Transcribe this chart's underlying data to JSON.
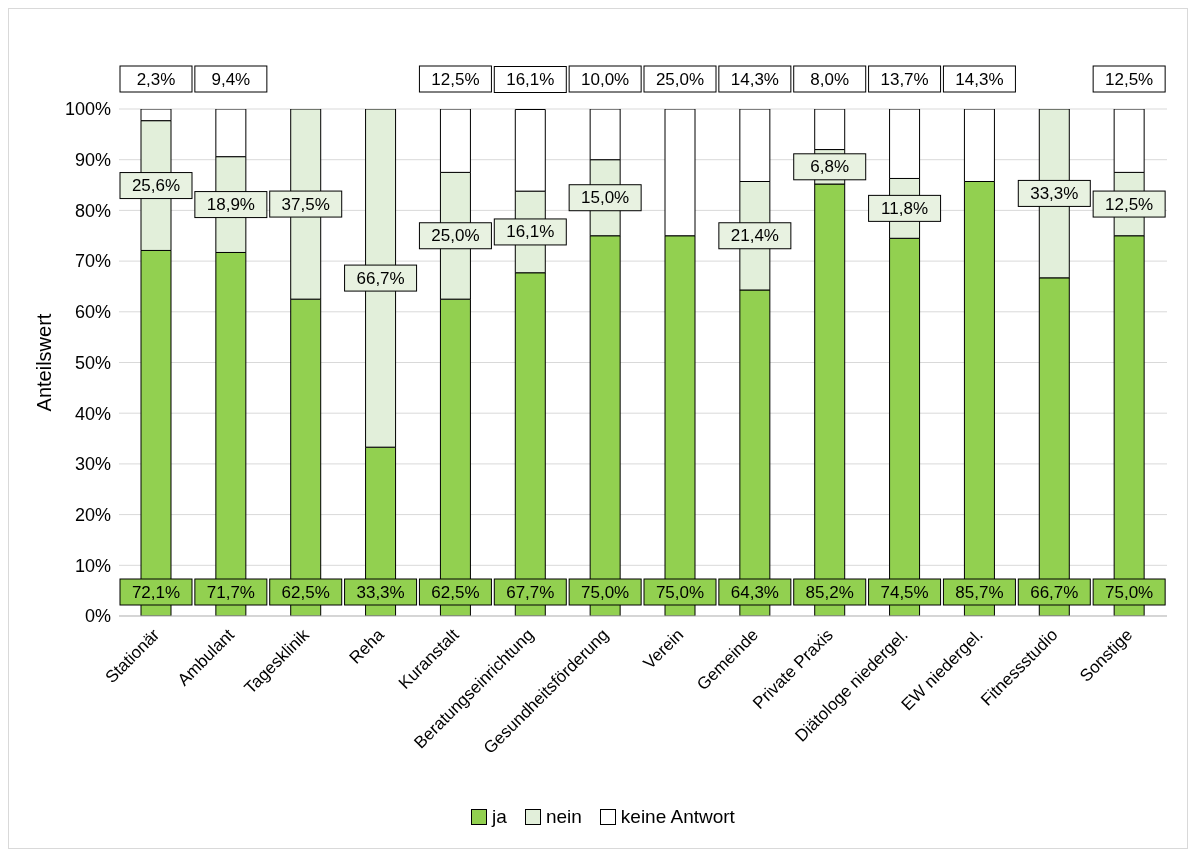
{
  "chart_data": {
    "type": "bar",
    "stacked": true,
    "ylabel": "Anteilswert",
    "categories": [
      "Stationär",
      "Ambulant",
      "Tagesklinik",
      "Reha",
      "Kuranstalt",
      "Beratungseinrichtung",
      "Gesundheitsförderung",
      "Verein",
      "Gemeinde",
      "Private Praxis",
      "Diätologe niedergel.",
      "EW niedergel.",
      "Fitnessstudio",
      "Sonstige"
    ],
    "series": [
      {
        "name": "ja",
        "color": "#92d050",
        "values": [
          72.1,
          71.7,
          62.5,
          33.3,
          62.5,
          67.7,
          75.0,
          75.0,
          64.3,
          85.2,
          74.5,
          85.7,
          66.7,
          75.0
        ],
        "value_labels": [
          "72,1%",
          "71,7%",
          "62,5%",
          "33,3%",
          "62,5%",
          "67,7%",
          "75,0%",
          "75,0%",
          "64,3%",
          "85,2%",
          "74,5%",
          "85,7%",
          "66,7%",
          "75,0%"
        ]
      },
      {
        "name": "nein",
        "color": "#e2efda",
        "values": [
          25.6,
          18.9,
          37.5,
          66.7,
          25.0,
          16.1,
          15.0,
          0,
          21.4,
          6.8,
          11.8,
          0,
          33.3,
          12.5
        ],
        "value_labels": [
          "25,6%",
          "18,9%",
          "37,5%",
          "66,7%",
          "25,0%",
          "16,1%",
          "15,0%",
          null,
          "21,4%",
          "6,8%",
          "11,8%",
          null,
          "33,3%",
          "12,5%"
        ]
      },
      {
        "name": "keine Antwort",
        "color": "#ffffff",
        "values": [
          2.3,
          9.4,
          0,
          0,
          12.5,
          16.1,
          10.0,
          25.0,
          14.3,
          8.0,
          13.7,
          14.3,
          0,
          12.5
        ],
        "value_labels": [
          "2,3%",
          "9,4%",
          null,
          null,
          "12,5%",
          "16,1%",
          "10,0%",
          "25,0%",
          "14,3%",
          "8,0%",
          "13,7%",
          "14,3%",
          null,
          "12,5%"
        ]
      }
    ],
    "ylim": [
      0,
      100
    ],
    "yticks": [
      {
        "value": 0,
        "label": "0%"
      },
      {
        "value": 10,
        "label": "10%"
      },
      {
        "value": 20,
        "label": "20%"
      },
      {
        "value": 30,
        "label": "30%"
      },
      {
        "value": 40,
        "label": "40%"
      },
      {
        "value": 50,
        "label": "50%"
      },
      {
        "value": 60,
        "label": "60%"
      },
      {
        "value": 70,
        "label": "70%"
      },
      {
        "value": 80,
        "label": "80%"
      },
      {
        "value": 90,
        "label": "90%"
      },
      {
        "value": 100,
        "label": "100%"
      }
    ],
    "grid": "y",
    "legend": "bottom"
  }
}
